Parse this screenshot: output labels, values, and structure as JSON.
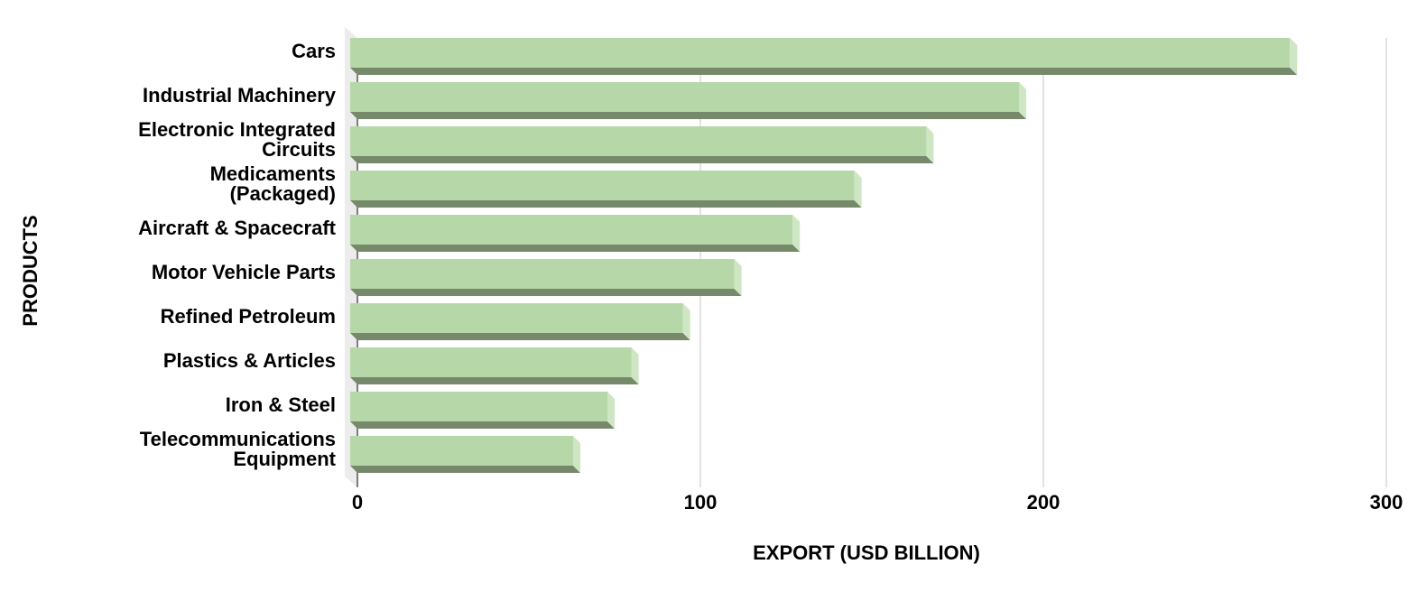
{
  "chart_data": {
    "type": "bar3d-horizontal",
    "categories": [
      "Cars",
      "Industrial Machinery",
      "Electronic Integrated\nCircuits",
      "Medicaments\n(Packaged)",
      "Aircraft & Spacecraft",
      "Motor Vehicle Parts",
      "Refined Petroleum",
      "Plastics & Articles",
      "Iron & Steel",
      "Telecommunications\nEquipment"
    ],
    "values": [
      274,
      195,
      168,
      147,
      129,
      112,
      97,
      82,
      75,
      65
    ],
    "color": "#b6d7a8",
    "shade_color": "#76896a",
    "xlim": [
      0,
      300
    ],
    "xticks": [
      0,
      100,
      200,
      300
    ],
    "grid": true,
    "xlabel": "EXPORT (USD BILLION)",
    "ylabel": "PRODUCTS"
  }
}
